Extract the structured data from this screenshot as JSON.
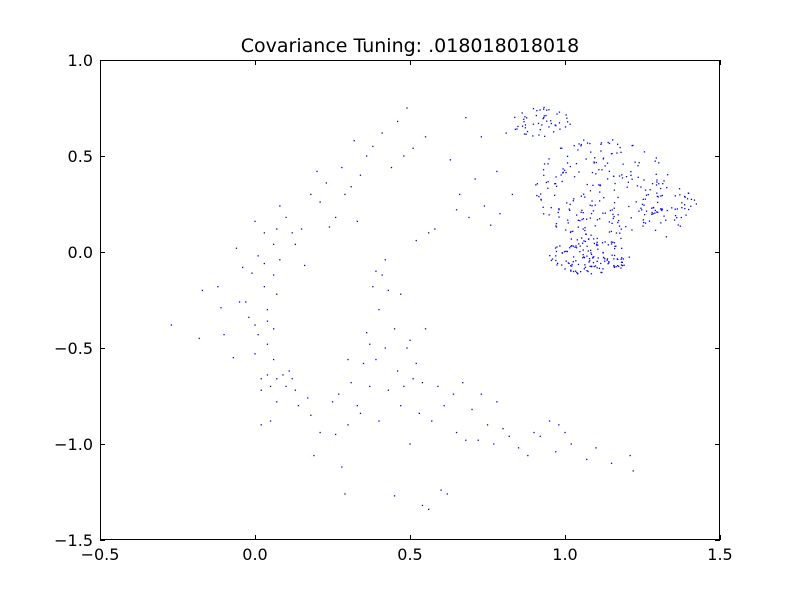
{
  "chart_data": {
    "type": "scatter",
    "title": "Covariance Tuning: .018018018018",
    "xlabel": "",
    "ylabel": "",
    "xlim": [
      -0.5,
      1.5
    ],
    "ylim": [
      -1.5,
      1.0
    ],
    "x_ticks": [
      -0.5,
      0.0,
      0.5,
      1.0,
      1.5
    ],
    "x_tick_labels": [
      "−0.5",
      "0.0",
      "0.5",
      "1.0",
      "1.5"
    ],
    "y_ticks": [
      -1.5,
      -1.0,
      -0.5,
      0.0,
      0.5,
      1.0
    ],
    "y_tick_labels": [
      "−1.5",
      "−1.0",
      "−0.5",
      "0.0",
      "0.5",
      "1.0"
    ],
    "grid": false,
    "marker_color": "#0000ff",
    "clusters": [
      {
        "cx": 1.12,
        "cy": 0.33,
        "rx": 0.22,
        "ry": 0.27,
        "n": 210
      },
      {
        "cx": 1.08,
        "cy": -0.02,
        "rx": 0.13,
        "ry": 0.1,
        "n": 140
      },
      {
        "cx": 1.33,
        "cy": 0.22,
        "rx": 0.1,
        "ry": 0.15,
        "n": 60
      },
      {
        "cx": 0.92,
        "cy": 0.68,
        "rx": 0.1,
        "ry": 0.08,
        "n": 50
      }
    ],
    "points": [
      [
        -0.27,
        -0.38
      ],
      [
        -0.18,
        -0.45
      ],
      [
        -0.17,
        -0.2
      ],
      [
        -0.12,
        -0.18
      ],
      [
        -0.11,
        -0.29
      ],
      [
        -0.1,
        -0.43
      ],
      [
        -0.07,
        -0.55
      ],
      [
        -0.06,
        0.02
      ],
      [
        -0.05,
        -0.26
      ],
      [
        -0.04,
        -0.08
      ],
      [
        -0.03,
        -0.26
      ],
      [
        -0.02,
        -0.34
      ],
      [
        -0.01,
        -0.11
      ],
      [
        0.0,
        0.16
      ],
      [
        0.0,
        -0.38
      ],
      [
        0.0,
        -0.53
      ],
      [
        0.01,
        -0.02
      ],
      [
        0.01,
        -0.43
      ],
      [
        0.02,
        -0.66
      ],
      [
        0.02,
        -0.72
      ],
      [
        0.02,
        -0.9
      ],
      [
        0.03,
        0.1
      ],
      [
        0.03,
        -0.06
      ],
      [
        0.03,
        -0.18
      ],
      [
        0.04,
        -0.3
      ],
      [
        0.04,
        -0.36
      ],
      [
        0.04,
        -0.48
      ],
      [
        0.04,
        -0.64
      ],
      [
        0.05,
        -0.7
      ],
      [
        0.05,
        -0.88
      ],
      [
        0.06,
        0.04
      ],
      [
        0.06,
        -0.12
      ],
      [
        0.06,
        -0.4
      ],
      [
        0.06,
        -0.56
      ],
      [
        0.07,
        0.12
      ],
      [
        0.07,
        -0.22
      ],
      [
        0.07,
        -0.66
      ],
      [
        0.07,
        -0.78
      ],
      [
        0.08,
        0.24
      ],
      [
        0.08,
        -0.04
      ],
      [
        0.09,
        -0.64
      ],
      [
        0.1,
        0.18
      ],
      [
        0.1,
        -0.7
      ],
      [
        0.11,
        -0.62
      ],
      [
        0.12,
        0.1
      ],
      [
        0.12,
        -0.66
      ],
      [
        0.13,
        0.04
      ],
      [
        0.13,
        -0.72
      ],
      [
        0.14,
        -0.8
      ],
      [
        0.15,
        0.12
      ],
      [
        0.16,
        -0.07
      ],
      [
        0.17,
        -0.76
      ],
      [
        0.18,
        0.3
      ],
      [
        0.18,
        -0.85
      ],
      [
        0.19,
        -1.06
      ],
      [
        0.2,
        0.42
      ],
      [
        0.21,
        0.26
      ],
      [
        0.21,
        -0.94
      ],
      [
        0.23,
        0.36
      ],
      [
        0.24,
        0.13
      ],
      [
        0.25,
        -0.78
      ],
      [
        0.26,
        0.18
      ],
      [
        0.26,
        -0.95
      ],
      [
        0.27,
        -0.74
      ],
      [
        0.28,
        0.44
      ],
      [
        0.28,
        -1.12
      ],
      [
        0.29,
        0.3
      ],
      [
        0.29,
        -1.26
      ],
      [
        0.3,
        -0.56
      ],
      [
        0.3,
        -0.9
      ],
      [
        0.31,
        0.34
      ],
      [
        0.31,
        -0.68
      ],
      [
        0.32,
        0.58
      ],
      [
        0.33,
        -0.8
      ],
      [
        0.33,
        0.16
      ],
      [
        0.34,
        0.4
      ],
      [
        0.34,
        -0.84
      ],
      [
        0.35,
        -0.58
      ],
      [
        0.36,
        -0.42
      ],
      [
        0.36,
        0.5
      ],
      [
        0.37,
        -0.48
      ],
      [
        0.37,
        -0.7
      ],
      [
        0.38,
        -0.18
      ],
      [
        0.38,
        0.55
      ],
      [
        0.39,
        -0.1
      ],
      [
        0.39,
        -0.56
      ],
      [
        0.4,
        -0.3
      ],
      [
        0.4,
        -0.88
      ],
      [
        0.41,
        -0.12
      ],
      [
        0.41,
        0.62
      ],
      [
        0.42,
        -0.04
      ],
      [
        0.42,
        -0.5
      ],
      [
        0.43,
        -0.2
      ],
      [
        0.43,
        -0.72
      ],
      [
        0.44,
        0.44
      ],
      [
        0.45,
        -0.4
      ],
      [
        0.45,
        -1.27
      ],
      [
        0.46,
        -0.62
      ],
      [
        0.46,
        0.68
      ],
      [
        0.47,
        -0.22
      ],
      [
        0.47,
        -0.8
      ],
      [
        0.48,
        0.5
      ],
      [
        0.48,
        -0.7
      ],
      [
        0.49,
        -0.5
      ],
      [
        0.49,
        0.75
      ],
      [
        0.5,
        -0.46
      ],
      [
        0.5,
        -1.0
      ],
      [
        0.51,
        0.54
      ],
      [
        0.51,
        -0.66
      ],
      [
        0.52,
        0.06
      ],
      [
        0.52,
        -0.58
      ],
      [
        0.53,
        -0.84
      ],
      [
        0.54,
        -0.68
      ],
      [
        0.54,
        -1.32
      ],
      [
        0.55,
        0.6
      ],
      [
        0.55,
        -0.4
      ],
      [
        0.56,
        0.1
      ],
      [
        0.56,
        -1.34
      ],
      [
        0.57,
        -0.88
      ],
      [
        0.58,
        0.12
      ],
      [
        0.59,
        -0.7
      ],
      [
        0.6,
        -1.24
      ],
      [
        0.61,
        -0.8
      ],
      [
        0.62,
        -1.26
      ],
      [
        0.63,
        0.48
      ],
      [
        0.64,
        -0.74
      ],
      [
        0.65,
        0.22
      ],
      [
        0.65,
        -0.94
      ],
      [
        0.66,
        0.3
      ],
      [
        0.67,
        -0.68
      ],
      [
        0.68,
        0.7
      ],
      [
        0.68,
        -0.98
      ],
      [
        0.69,
        0.18
      ],
      [
        0.7,
        -0.82
      ],
      [
        0.71,
        0.38
      ],
      [
        0.72,
        -0.98
      ],
      [
        0.73,
        0.6
      ],
      [
        0.73,
        -0.74
      ],
      [
        0.74,
        0.24
      ],
      [
        0.75,
        -0.9
      ],
      [
        0.76,
        0.14
      ],
      [
        0.77,
        -1.0
      ],
      [
        0.78,
        0.42
      ],
      [
        0.78,
        -0.78
      ],
      [
        0.79,
        0.2
      ],
      [
        0.8,
        -0.92
      ],
      [
        0.81,
        0.62
      ],
      [
        0.82,
        -0.96
      ],
      [
        0.83,
        0.3
      ],
      [
        0.85,
        -1.02
      ],
      [
        0.88,
        -1.06
      ],
      [
        0.9,
        -0.94
      ],
      [
        0.92,
        -0.96
      ],
      [
        0.95,
        -0.88
      ],
      [
        0.97,
        -1.04
      ],
      [
        0.98,
        -0.9
      ],
      [
        1.0,
        -0.94
      ],
      [
        1.02,
        -1.0
      ],
      [
        1.07,
        -1.08
      ],
      [
        1.1,
        -1.02
      ],
      [
        1.15,
        -1.1
      ],
      [
        1.21,
        -1.06
      ],
      [
        1.22,
        -1.14
      ]
    ]
  }
}
